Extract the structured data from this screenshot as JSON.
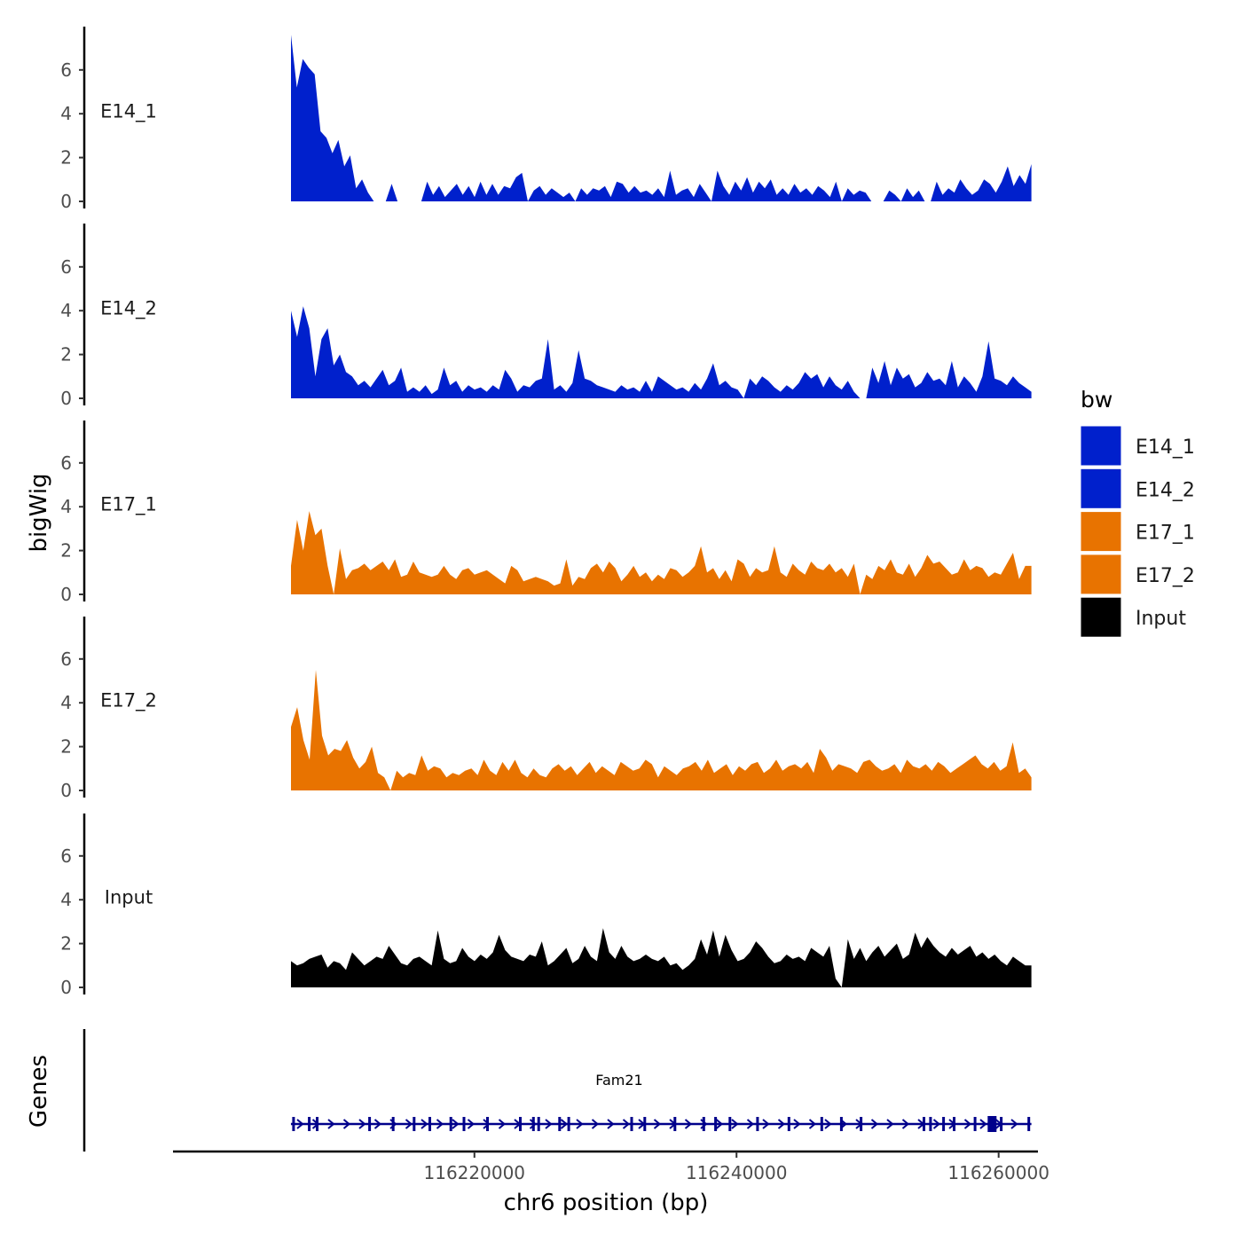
{
  "chart_data": {
    "type": "area",
    "y_axis_title": "bigWig",
    "genes_axis_title": "Genes",
    "x_axis_title": "chr6 position (bp)",
    "x_range": [
      116197000,
      116263000
    ],
    "x_ticks": [
      116220000,
      116240000,
      116260000
    ],
    "x_tick_labels": [
      "116220000",
      "116240000",
      "116260000"
    ],
    "y_range": [
      0,
      8
    ],
    "y_ticks": [
      0,
      2,
      4,
      6
    ],
    "y_tick_labels": [
      "0",
      "2",
      "4",
      "6"
    ],
    "legend": {
      "title": "bw",
      "position": "right",
      "entries": [
        {
          "label": "E14_1",
          "color": "#0020CC"
        },
        {
          "label": "E14_2",
          "color": "#0020CC"
        },
        {
          "label": "E17_1",
          "color": "#E87300"
        },
        {
          "label": "E17_2",
          "color": "#E87300"
        },
        {
          "label": "Input",
          "color": "#000000"
        }
      ]
    },
    "series_x_start": 116206000,
    "series_x_end": 116262500,
    "tracks": [
      {
        "name": "E14_1",
        "color": "#0020CC",
        "values": [
          7.6,
          5.2,
          6.5,
          6.1,
          5.8,
          3.2,
          2.9,
          2.2,
          2.8,
          1.6,
          2.1,
          0.6,
          1.0,
          0.4,
          0,
          0,
          0,
          0.8,
          0,
          0,
          0,
          0,
          0,
          0.9,
          0.3,
          0.7,
          0.2,
          0.5,
          0.8,
          0.3,
          0.7,
          0.2,
          0.9,
          0.3,
          0.8,
          0.3,
          0.7,
          0.6,
          1.1,
          1.3,
          0,
          0.5,
          0.7,
          0.3,
          0.6,
          0.4,
          0.2,
          0.4,
          0,
          0.6,
          0.3,
          0.6,
          0.5,
          0.7,
          0.2,
          0.9,
          0.8,
          0.4,
          0.7,
          0.4,
          0.5,
          0.3,
          0.6,
          0.2,
          1.4,
          0.3,
          0.5,
          0.6,
          0.2,
          0.8,
          0.4,
          0,
          1.4,
          0.7,
          0.3,
          0.9,
          0.5,
          1.1,
          0.4,
          0.9,
          0.6,
          1.0,
          0.3,
          0.6,
          0.3,
          0.8,
          0.4,
          0.6,
          0.3,
          0.7,
          0.5,
          0.2,
          0.9,
          0,
          0.6,
          0.3,
          0.5,
          0.4,
          0,
          0,
          0,
          0.5,
          0.3,
          0,
          0.6,
          0.2,
          0.5,
          0,
          0,
          0.9,
          0.3,
          0.6,
          0.4,
          1.0,
          0.6,
          0.3,
          0.5,
          1.0,
          0.8,
          0.4,
          0.9,
          1.6,
          0.7,
          1.2,
          0.8,
          1.7
        ]
      },
      {
        "name": "E14_2",
        "color": "#0020CC",
        "values": [
          4.0,
          2.8,
          4.2,
          3.2,
          1.0,
          2.7,
          3.2,
          1.5,
          2.0,
          1.2,
          1.0,
          0.6,
          0.8,
          0.5,
          0.9,
          1.3,
          0.6,
          0.8,
          1.4,
          0.3,
          0.5,
          0.3,
          0.6,
          0.2,
          0.4,
          1.4,
          0.6,
          0.8,
          0.3,
          0.6,
          0.4,
          0.5,
          0.3,
          0.6,
          0.4,
          1.3,
          0.9,
          0.3,
          0.6,
          0.5,
          0.8,
          0.9,
          2.7,
          0.4,
          0.6,
          0.3,
          0.7,
          2.2,
          0.9,
          0.8,
          0.6,
          0.5,
          0.4,
          0.3,
          0.6,
          0.4,
          0.5,
          0.3,
          0.8,
          0.3,
          1.0,
          0.8,
          0.6,
          0.4,
          0.5,
          0.3,
          0.7,
          0.4,
          0.9,
          1.6,
          0.6,
          0.8,
          0.5,
          0.4,
          0,
          0.9,
          0.6,
          1.0,
          0.8,
          0.5,
          0.3,
          0.6,
          0.4,
          0.7,
          1.2,
          0.9,
          1.1,
          0.5,
          1.0,
          0.6,
          0.4,
          0.8,
          0.3,
          0,
          0,
          1.4,
          0.7,
          1.7,
          0.6,
          1.4,
          0.9,
          1.1,
          0.5,
          0.7,
          1.2,
          0.8,
          0.9,
          0.6,
          1.7,
          0.5,
          1.0,
          0.7,
          0.3,
          1.0,
          2.6,
          0.9,
          0.8,
          0.6,
          1.0,
          0.7,
          0.5,
          0.3
        ]
      },
      {
        "name": "E17_1",
        "color": "#E87300",
        "values": [
          1.3,
          3.4,
          2.0,
          3.8,
          2.7,
          3.0,
          1.3,
          0,
          2.1,
          0.7,
          1.1,
          1.2,
          1.4,
          1.1,
          1.3,
          1.5,
          1.1,
          1.6,
          0.8,
          0.9,
          1.5,
          1.0,
          0.9,
          0.8,
          0.9,
          1.3,
          0.9,
          0.7,
          1.1,
          1.2,
          0.9,
          1.0,
          1.1,
          0.9,
          0.7,
          0.5,
          1.3,
          1.1,
          0.6,
          0.7,
          0.8,
          0.7,
          0.6,
          0.4,
          0.5,
          1.6,
          0.4,
          0.8,
          0.7,
          1.2,
          1.4,
          1.0,
          1.5,
          1.2,
          0.6,
          0.9,
          1.3,
          0.8,
          1.0,
          0.6,
          0.9,
          0.7,
          1.2,
          1.1,
          0.8,
          1.0,
          1.3,
          2.2,
          1.0,
          1.2,
          0.7,
          1.1,
          0.6,
          1.6,
          1.4,
          0.8,
          1.2,
          1.0,
          1.1,
          2.2,
          1.0,
          0.8,
          1.4,
          1.1,
          0.9,
          1.5,
          1.2,
          1.1,
          1.4,
          1.0,
          1.2,
          0.8,
          1.4,
          0,
          0.9,
          0.7,
          1.3,
          1.1,
          1.6,
          1.0,
          0.9,
          1.4,
          0.8,
          1.2,
          1.8,
          1.4,
          1.5,
          1.2,
          0.9,
          1.0,
          1.6,
          1.1,
          1.3,
          1.2,
          0.8,
          1.0,
          0.9,
          1.4,
          1.9,
          0.7,
          1.3,
          1.3
        ]
      },
      {
        "name": "E17_2",
        "color": "#E87300",
        "values": [
          2.9,
          3.8,
          2.3,
          1.4,
          5.5,
          2.5,
          1.6,
          1.9,
          1.8,
          2.3,
          1.5,
          1.0,
          1.3,
          2.0,
          0.8,
          0.6,
          0,
          0.9,
          0.6,
          0.8,
          0.7,
          1.6,
          0.9,
          1.1,
          1.0,
          0.6,
          0.8,
          0.7,
          0.9,
          1.0,
          0.7,
          1.4,
          0.9,
          0.7,
          1.3,
          0.9,
          1.4,
          0.8,
          0.6,
          1.0,
          0.7,
          0.6,
          1.0,
          1.2,
          0.9,
          1.1,
          0.7,
          1.0,
          1.3,
          0.8,
          1.1,
          0.9,
          0.7,
          1.3,
          1.1,
          0.9,
          1.0,
          1.4,
          1.2,
          0.6,
          1.1,
          0.9,
          0.7,
          1.0,
          1.1,
          1.3,
          0.9,
          1.4,
          0.8,
          1.0,
          1.2,
          0.7,
          1.1,
          0.9,
          1.2,
          1.3,
          0.8,
          1.0,
          1.4,
          0.9,
          1.1,
          1.2,
          1.0,
          1.3,
          0.8,
          1.9,
          1.5,
          0.9,
          1.2,
          1.1,
          1.0,
          0.8,
          1.3,
          1.4,
          1.1,
          0.9,
          1.0,
          1.2,
          0.8,
          1.4,
          1.1,
          1.0,
          1.2,
          0.9,
          1.3,
          1.1,
          0.8,
          1.0,
          1.2,
          1.4,
          1.6,
          1.2,
          1.0,
          1.3,
          0.9,
          1.1,
          2.2,
          0.8,
          1.0,
          0.6
        ]
      },
      {
        "name": "Input",
        "color": "#000000",
        "values": [
          1.2,
          1.0,
          1.1,
          1.3,
          1.4,
          1.5,
          0.9,
          1.2,
          1.1,
          0.8,
          1.6,
          1.3,
          1.0,
          1.2,
          1.4,
          1.3,
          1.9,
          1.5,
          1.1,
          1.0,
          1.3,
          1.4,
          1.2,
          1.0,
          2.6,
          1.3,
          1.1,
          1.2,
          1.8,
          1.4,
          1.2,
          1.5,
          1.3,
          1.6,
          2.4,
          1.7,
          1.4,
          1.3,
          1.2,
          1.5,
          1.4,
          2.1,
          1.0,
          1.2,
          1.5,
          1.8,
          1.1,
          1.3,
          1.9,
          1.4,
          1.2,
          2.7,
          1.6,
          1.3,
          1.9,
          1.4,
          1.2,
          1.3,
          1.5,
          1.3,
          1.2,
          1.4,
          1.0,
          1.1,
          0.8,
          1.0,
          1.3,
          2.2,
          1.5,
          2.6,
          1.4,
          2.4,
          1.7,
          1.2,
          1.3,
          1.6,
          2.1,
          1.8,
          1.4,
          1.1,
          1.2,
          1.5,
          1.3,
          1.4,
          1.2,
          1.8,
          1.6,
          1.4,
          1.9,
          0.4,
          0,
          2.2,
          1.3,
          1.8,
          1.2,
          1.6,
          1.9,
          1.4,
          1.7,
          2.0,
          1.3,
          1.5,
          2.5,
          1.8,
          2.3,
          1.9,
          1.6,
          1.4,
          1.8,
          1.5,
          1.7,
          1.9,
          1.4,
          1.6,
          1.3,
          1.5,
          1.2,
          1.0,
          1.4,
          1.2,
          1.0,
          1.0
        ]
      }
    ],
    "gene": {
      "name": "Fam21",
      "strand": "+",
      "start": 116206000,
      "end": 116262500,
      "exons": [
        116206200,
        116207400,
        116208000,
        116212000,
        116213800,
        116215400,
        116216600,
        116218200,
        116219200,
        116221000,
        116223500,
        116224500,
        116224900,
        116226500,
        116227200,
        116232000,
        116233000,
        116235300,
        116237500,
        116238400,
        116239500,
        116241600,
        116244000,
        116246500,
        116248000,
        116249500,
        116254300,
        116254800,
        116255800,
        116256600,
        116258200,
        116260200,
        116262300
      ],
      "big_exons": [
        116259500
      ]
    }
  }
}
